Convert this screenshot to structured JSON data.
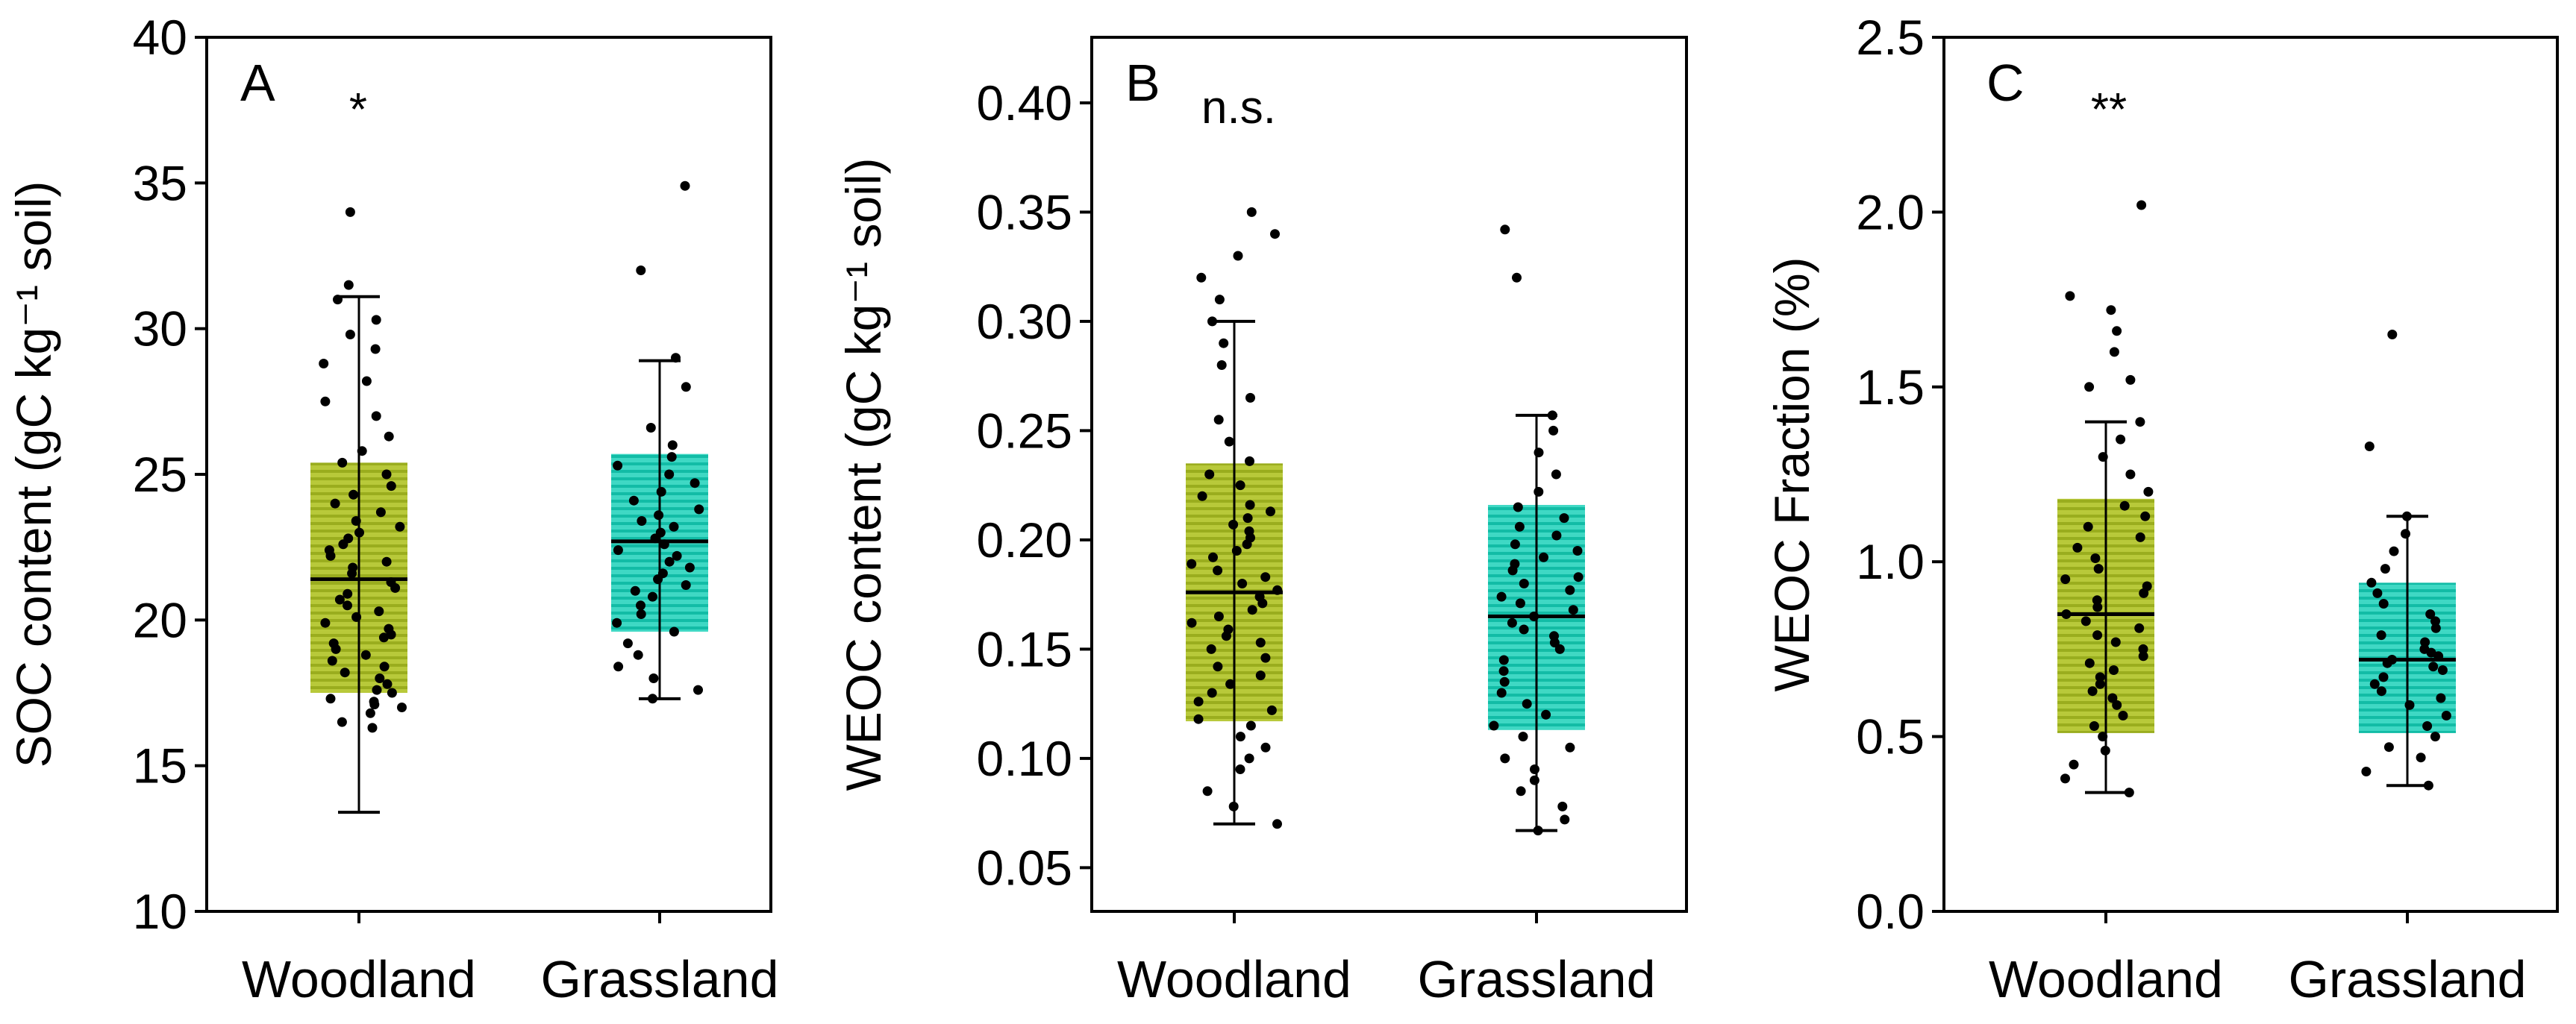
{
  "figure": {
    "colors": {
      "woodland_fill": "#b8c93a",
      "woodland_stripe": "#9aad1e",
      "grassland_fill": "#3fd8c4",
      "grassland_stripe": "#12bca6",
      "ink": "#000000"
    }
  },
  "chart_data": [
    {
      "type": "box",
      "panel": "A",
      "significance": "*",
      "title": "",
      "xlabel": "",
      "ylabel": "SOC content (gC kg⁻¹ soil)",
      "ylim": [
        10,
        40
      ],
      "yticks": [
        10,
        15,
        20,
        25,
        30,
        35,
        40
      ],
      "ytick_labels": [
        "10",
        "15",
        "20",
        "25",
        "30",
        "35",
        "40"
      ],
      "categories": [
        "Woodland",
        "Grassland"
      ],
      "boxes": [
        {
          "name": "Woodland",
          "q1": 17.5,
          "median": 21.4,
          "q3": 25.4,
          "whisker_low": 13.4,
          "whisker_high": 31.1,
          "points": [
            16.3,
            16.5,
            16.8,
            17.0,
            17.1,
            17.2,
            17.3,
            17.5,
            17.6,
            17.8,
            18.0,
            18.2,
            18.4,
            18.6,
            18.8,
            19.0,
            19.2,
            19.4,
            19.5,
            19.7,
            19.9,
            20.1,
            20.3,
            20.5,
            20.7,
            20.9,
            21.1,
            21.3,
            21.6,
            21.8,
            22.0,
            22.2,
            22.4,
            22.6,
            22.8,
            23.0,
            23.2,
            23.4,
            23.7,
            24.0,
            24.3,
            24.6,
            25.0,
            25.4,
            25.8,
            26.3,
            27.0,
            27.5,
            28.2,
            28.8,
            29.3,
            29.8,
            30.3,
            31.0,
            31.5,
            34.0
          ]
        },
        {
          "name": "Grassland",
          "q1": 19.6,
          "median": 22.7,
          "q3": 25.7,
          "whisker_low": 17.3,
          "whisker_high": 28.9,
          "points": [
            17.3,
            17.6,
            18.0,
            18.4,
            18.8,
            19.2,
            19.6,
            19.9,
            20.2,
            20.5,
            20.8,
            21.0,
            21.2,
            21.4,
            21.6,
            21.8,
            22.0,
            22.2,
            22.4,
            22.6,
            22.8,
            23.0,
            23.2,
            23.4,
            23.6,
            23.8,
            24.1,
            24.4,
            24.7,
            25.0,
            25.3,
            25.6,
            26.0,
            26.6,
            28.0,
            29.0,
            32.0,
            34.9
          ]
        }
      ]
    },
    {
      "type": "box",
      "panel": "B",
      "significance": "n.s.",
      "title": "",
      "xlabel": "",
      "ylabel": "WEOC content (gC kg⁻¹ soil)",
      "ylim": [
        0.03,
        0.43
      ],
      "yticks": [
        0.05,
        0.1,
        0.15,
        0.2,
        0.25,
        0.3,
        0.35,
        0.4
      ],
      "ytick_labels": [
        "0.05",
        "0.10",
        "0.15",
        "0.20",
        "0.25",
        "0.30",
        "0.35",
        "0.40"
      ],
      "categories": [
        "Woodland",
        "Grassland"
      ],
      "boxes": [
        {
          "name": "Woodland",
          "q1": 0.117,
          "median": 0.176,
          "q3": 0.235,
          "whisker_low": 0.07,
          "whisker_high": 0.3,
          "points": [
            0.07,
            0.078,
            0.085,
            0.095,
            0.1,
            0.105,
            0.11,
            0.115,
            0.118,
            0.122,
            0.126,
            0.13,
            0.134,
            0.138,
            0.142,
            0.146,
            0.15,
            0.153,
            0.156,
            0.159,
            0.162,
            0.165,
            0.168,
            0.171,
            0.174,
            0.177,
            0.18,
            0.183,
            0.186,
            0.189,
            0.192,
            0.195,
            0.198,
            0.201,
            0.204,
            0.207,
            0.21,
            0.213,
            0.216,
            0.22,
            0.225,
            0.23,
            0.236,
            0.245,
            0.255,
            0.265,
            0.28,
            0.29,
            0.3,
            0.31,
            0.32,
            0.33,
            0.34,
            0.35
          ]
        },
        {
          "name": "Grassland",
          "q1": 0.113,
          "median": 0.165,
          "q3": 0.216,
          "whisker_low": 0.067,
          "whisker_high": 0.257,
          "points": [
            0.067,
            0.072,
            0.078,
            0.085,
            0.09,
            0.095,
            0.1,
            0.105,
            0.11,
            0.115,
            0.12,
            0.125,
            0.13,
            0.135,
            0.14,
            0.145,
            0.15,
            0.153,
            0.156,
            0.159,
            0.162,
            0.165,
            0.168,
            0.171,
            0.174,
            0.177,
            0.18,
            0.183,
            0.186,
            0.189,
            0.192,
            0.195,
            0.198,
            0.202,
            0.206,
            0.21,
            0.215,
            0.222,
            0.23,
            0.24,
            0.25,
            0.257,
            0.32,
            0.342
          ]
        }
      ]
    },
    {
      "type": "box",
      "panel": "C",
      "significance": "**",
      "title": "",
      "xlabel": "",
      "ylabel": "WEOC Fraction (%)",
      "ylim": [
        0.0,
        2.5
      ],
      "yticks": [
        0.0,
        0.5,
        1.0,
        1.5,
        2.0,
        2.5
      ],
      "ytick_labels": [
        "0.0",
        "0.5",
        "1.0",
        "1.5",
        "2.0",
        "2.5"
      ],
      "categories": [
        "Woodland",
        "Grassland"
      ],
      "boxes": [
        {
          "name": "Woodland",
          "q1": 0.51,
          "median": 0.85,
          "q3": 1.18,
          "whisker_low": 0.34,
          "whisker_high": 1.4,
          "points": [
            0.34,
            0.38,
            0.42,
            0.46,
            0.5,
            0.53,
            0.56,
            0.59,
            0.61,
            0.63,
            0.65,
            0.67,
            0.69,
            0.71,
            0.73,
            0.75,
            0.77,
            0.79,
            0.81,
            0.83,
            0.85,
            0.87,
            0.89,
            0.91,
            0.93,
            0.95,
            0.98,
            1.01,
            1.04,
            1.07,
            1.1,
            1.13,
            1.16,
            1.2,
            1.25,
            1.3,
            1.35,
            1.4,
            1.5,
            1.52,
            1.6,
            1.66,
            1.72,
            1.76,
            2.02
          ]
        },
        {
          "name": "Grassland",
          "q1": 0.51,
          "median": 0.72,
          "q3": 0.94,
          "whisker_low": 0.36,
          "whisker_high": 1.13,
          "points": [
            0.36,
            0.4,
            0.44,
            0.47,
            0.5,
            0.53,
            0.56,
            0.59,
            0.61,
            0.63,
            0.65,
            0.67,
            0.69,
            0.7,
            0.71,
            0.72,
            0.73,
            0.74,
            0.75,
            0.77,
            0.79,
            0.81,
            0.83,
            0.85,
            0.88,
            0.91,
            0.94,
            0.98,
            1.03,
            1.08,
            1.13,
            1.33,
            1.65
          ]
        }
      ]
    }
  ]
}
